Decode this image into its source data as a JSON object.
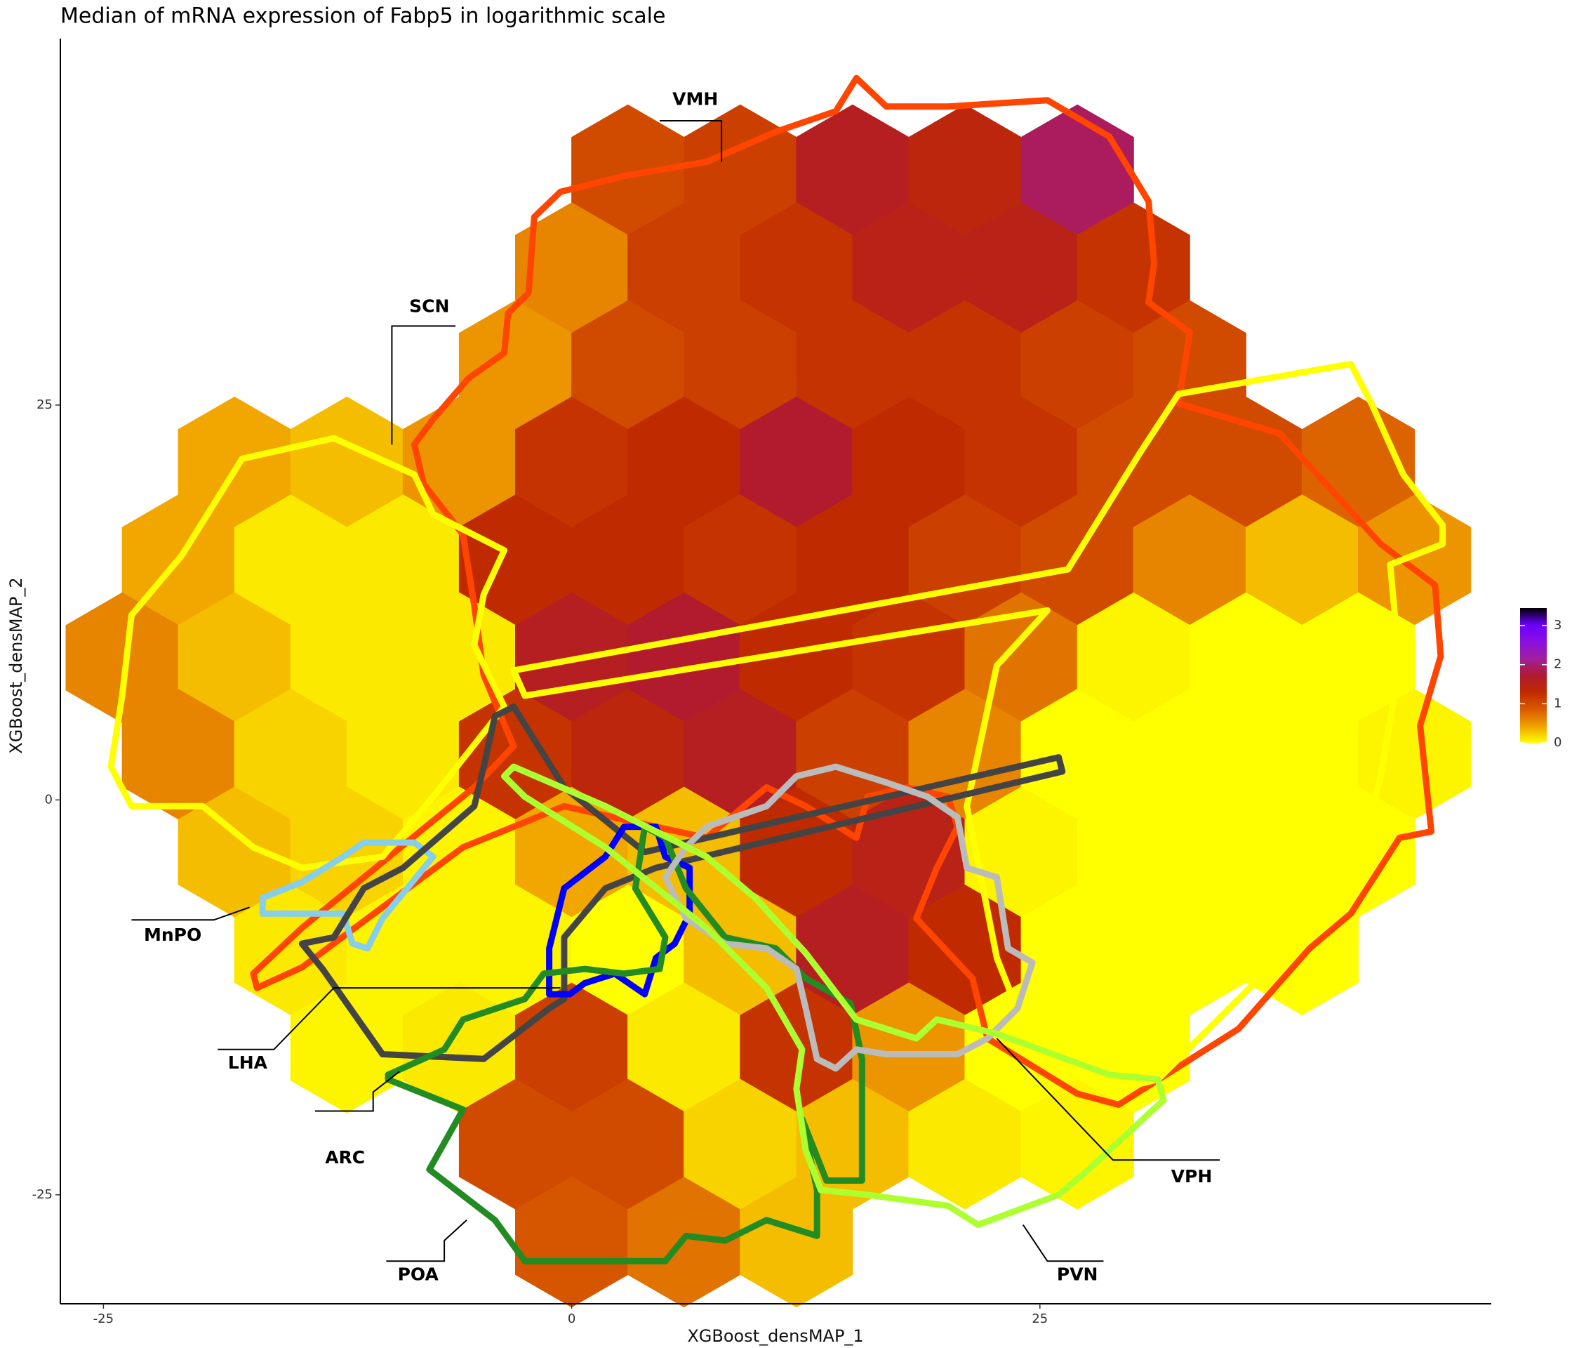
{
  "chart_data": {
    "type": "hexbin",
    "title": "Median of mRNA expression of Fabp5 in logarithmic scale",
    "x_label": "XGBoost_densMAP_1",
    "y_label": "XGBoost_densMAP_2",
    "xlim": [
      -27.3,
      49.1
    ],
    "ylim": [
      -31.9,
      48.2
    ],
    "xticks": [
      -25,
      0,
      25
    ],
    "yticks": [
      -25,
      0,
      25
    ],
    "grid": false,
    "hexbin": {
      "x": [
        3,
        9,
        15,
        21,
        27,
        0,
        6,
        12,
        18,
        24,
        30,
        -3,
        3,
        9,
        15,
        21,
        27,
        33,
        -18,
        -12,
        -6,
        0,
        6,
        12,
        18,
        24,
        30,
        36,
        42,
        -21,
        -15,
        -9,
        -3,
        3,
        9,
        15,
        21,
        27,
        33,
        39,
        45,
        -24,
        -18,
        -12,
        -6,
        0,
        6,
        12,
        18,
        24,
        30,
        36,
        42,
        -21,
        -15,
        -9,
        -3,
        3,
        9,
        15,
        21,
        27,
        33,
        39,
        45,
        -18,
        -12,
        -6,
        0,
        6,
        12,
        18,
        24,
        30,
        36,
        42,
        -15,
        -9,
        -3,
        3,
        9,
        15,
        21,
        27,
        33,
        39,
        -12,
        -6,
        0,
        6,
        12,
        18,
        24,
        30,
        -3,
        3,
        9,
        15,
        21,
        27,
        0,
        6,
        12
      ],
      "y": [
        39.9,
        39.9,
        39.9,
        39.9,
        39.9,
        33.7,
        33.7,
        33.7,
        33.7,
        33.7,
        33.7,
        27.5,
        27.5,
        27.5,
        27.5,
        27.5,
        27.5,
        27.5,
        21.4,
        21.4,
        21.4,
        21.4,
        21.4,
        21.4,
        21.4,
        21.4,
        21.4,
        21.4,
        21.4,
        15.2,
        15.2,
        15.2,
        15.2,
        15.2,
        15.2,
        15.2,
        15.2,
        15.2,
        15.2,
        15.2,
        15.2,
        9,
        9,
        9,
        9,
        9,
        9,
        9,
        9,
        9,
        9,
        9,
        9,
        2.9,
        2.9,
        2.9,
        2.9,
        2.9,
        2.9,
        2.9,
        2.9,
        2.9,
        2.9,
        2.9,
        2.9,
        -3.3,
        -3.3,
        -3.3,
        -3.3,
        -3.3,
        -3.3,
        -3.3,
        -3.3,
        -3.3,
        -3.3,
        -3.3,
        -9.5,
        -9.5,
        -9.5,
        -9.5,
        -9.5,
        -9.5,
        -9.5,
        -9.5,
        -9.5,
        -9.5,
        -15.7,
        -15.7,
        -15.7,
        -15.7,
        -15.7,
        -15.7,
        -15.7,
        -15.7,
        -21.8,
        -21.8,
        -21.8,
        -21.8,
        -21.8,
        -21.8,
        -28,
        -28,
        -28
      ],
      "values": [
        1.0,
        1.1,
        1.6,
        1.4,
        1.9,
        0.6,
        1.1,
        1.2,
        1.5,
        1.5,
        1.2,
        0.5,
        1.0,
        1.1,
        1.2,
        1.2,
        1.1,
        1.0,
        0.4,
        0.3,
        0.5,
        1.2,
        1.3,
        1.7,
        1.3,
        1.2,
        1.0,
        1.0,
        0.8,
        0.4,
        0.1,
        0.1,
        1.3,
        1.3,
        1.2,
        1.3,
        1.1,
        1.0,
        0.6,
        0.3,
        0.5,
        0.6,
        0.3,
        0.1,
        0.1,
        1.6,
        1.7,
        1.3,
        1.2,
        0.7,
        0.05,
        0,
        0,
        0.6,
        0.2,
        0.1,
        1.2,
        1.4,
        1.6,
        1.1,
        0.6,
        0,
        0,
        0,
        0.05,
        0.3,
        0.2,
        0.05,
        0.4,
        0.3,
        1.3,
        1.5,
        0.05,
        0,
        0,
        0,
        0.1,
        0.05,
        0.05,
        0,
        0.3,
        1.6,
        1.3,
        0,
        0,
        0,
        0.05,
        0.1,
        1.1,
        0.1,
        1.2,
        0.5,
        0,
        0,
        1.0,
        1.0,
        0.2,
        0.3,
        0.1,
        0.05,
        0.9,
        0.7,
        0.3
      ]
    },
    "colorbar": {
      "lim": [
        0,
        3.45
      ],
      "ticks": [
        0,
        1,
        2,
        3
      ],
      "colors": [
        "#ffff00",
        "#f0a000",
        "#d85a00",
        "#c02a00",
        "#b01a30",
        "#a020a0",
        "#8a10e0",
        "#6a00ff",
        "#000000"
      ]
    },
    "regions": [
      {
        "name": "VMH",
        "color": "#ff4500",
        "x": [
          -8.4,
          -7.4,
          -5.5,
          -3.6,
          -3.4,
          -2.3,
          -2.0,
          -0.6,
          2.8,
          7.2,
          10.9,
          14.1,
          15.2,
          16.8,
          20.1,
          25.4,
          28.7,
          30.8,
          31.1,
          30.8,
          33.0,
          32.4,
          37.8,
          43.2,
          46.1,
          46.4,
          45.3,
          45.9,
          44.2,
          41.6,
          39.4,
          35.6,
          29.2,
          27.0,
          22.2,
          21.4,
          18.4,
          19.5,
          20.6,
          20.1,
          17.9,
          15.8,
          15.2,
          12.5,
          10.4,
          7.2,
          4.5,
          -0.4,
          -5.8,
          -14.4,
          -16.8,
          -17.0,
          -14.4,
          -5.2,
          -3.1,
          -4.7,
          -5.2,
          -5.8,
          -7.9
        ],
        "y": [
          22.5,
          24.1,
          26.7,
          28.3,
          30.8,
          32.1,
          36.9,
          38.5,
          39.5,
          40.4,
          42.3,
          43.6,
          45.7,
          43.9,
          43.9,
          44.3,
          42.0,
          37.9,
          34.0,
          31.5,
          29.6,
          25.1,
          23.2,
          16.2,
          13.6,
          9.1,
          4.7,
          -2.0,
          -2.4,
          -7.2,
          -9.4,
          -14.5,
          -19.3,
          -18.6,
          -15.1,
          -11.3,
          -7.5,
          -4.3,
          -1.7,
          0.2,
          0.8,
          0.2,
          -2.4,
          -0.4,
          0.8,
          -2.4,
          -1.7,
          -0.4,
          -3.0,
          -10.6,
          -11.9,
          -11.0,
          -8.1,
          0.8,
          3.4,
          7.9,
          12.3,
          16.8,
          20.0
        ],
        "label_x": 6.6,
        "label_y": 44.3,
        "leader_x": [
          4.7,
          8.0,
          8.0
        ],
        "leader_y": [
          43.0,
          43.0,
          40.4
        ]
      },
      {
        "name": "SCN",
        "color": "#ffff00",
        "x": [
          -24.0,
          -23.5,
          -20.8,
          -17.6,
          -12.7,
          -8.4,
          -7.4,
          -3.6,
          -4.7,
          -5.2,
          -3.6,
          -7.4,
          -10.1,
          -14.4,
          -17.0,
          -19.7,
          -23.5,
          -24.6,
          null,
          -3.1,
          26.5,
          30.3,
          32.4,
          41.6,
          42.7,
          44.4,
          46.5,
          46.5,
          43.7,
          44.2,
          43.2,
          41.6,
          36.2,
          31.3,
          29.2,
          24.4,
          22.7,
          21.1,
          22.7,
          25.4,
          -2.5
        ],
        "y": [
          6.6,
          11.7,
          15.5,
          21.6,
          22.9,
          20.6,
          18.1,
          15.8,
          13.0,
          9.8,
          5.9,
          0.2,
          -3.6,
          -4.3,
          -3.0,
          -0.4,
          -0.4,
          2.1,
          null,
          8.2,
          14.6,
          21.9,
          25.7,
          27.6,
          25.1,
          20.6,
          17.4,
          16.2,
          14.9,
          8.5,
          1.5,
          -5.6,
          -11.9,
          -17.7,
          -18.3,
          -15.1,
          -10.0,
          -0.4,
          8.5,
          12.0,
          6.6
        ],
        "label_x": -7.6,
        "label_y": 31.2,
        "leader_x": [
          -6.2,
          -9.6,
          -9.6
        ],
        "leader_y": [
          30.0,
          30.0,
          22.5
        ]
      },
      {
        "name": "MnPO",
        "color": "#87ceeb",
        "x": [
          -16.5,
          -14.4,
          -12.2,
          -11.1,
          -8.4,
          -7.4,
          -10.1,
          -10.9,
          -11.7,
          -12.2,
          -16.5
        ],
        "y": [
          -6.2,
          -5.2,
          -3.6,
          -2.7,
          -2.7,
          -3.6,
          -7.5,
          -9.4,
          -9.1,
          -7.2,
          -7.2
        ],
        "label_x": -21.3,
        "label_y": -8.6,
        "leader_x": [
          -23.5,
          -19.1,
          -17.2
        ],
        "leader_y": [
          -7.6,
          -7.6,
          -6.8
        ]
      },
      {
        "name": "LHA",
        "color": "#444444",
        "x": [
          -3.6,
          -3.1,
          -0.4,
          3.9,
          26.0,
          26.2,
          4.5,
          1.8,
          -0.4,
          -0.4,
          -1.2,
          -4.7,
          -10.1,
          -13.3,
          -14.4,
          -12.7,
          -11.1,
          -9.0,
          -5.2,
          -4.7,
          -4.1
        ],
        "y": [
          5.6,
          5.9,
          0.8,
          -3.3,
          2.7,
          1.8,
          -4.3,
          -5.6,
          -8.7,
          -12.6,
          -13.2,
          -16.4,
          -16.1,
          -10.7,
          -9.1,
          -8.7,
          -5.6,
          -4.3,
          -0.4,
          2.1,
          5.3
        ],
        "label_x": -17.3,
        "label_y": -16.7,
        "leader_x": [
          -18.9,
          -15.9,
          -12.7,
          -0.6
        ],
        "leader_y": [
          -15.8,
          -15.8,
          -11.9,
          -11.9
        ]
      },
      {
        "name": "ARC",
        "color": "#0000ff",
        "x": [
          -1.2,
          -1.2,
          -0.4,
          1.8,
          2.8,
          4.5,
          5.0,
          6.3,
          6.3,
          5.5,
          4.5,
          3.9,
          2.3,
          0.7,
          -0.1
        ],
        "y": [
          -12.3,
          -9.4,
          -5.6,
          -3.6,
          -1.7,
          -1.7,
          -3.6,
          -4.3,
          -7.2,
          -9.1,
          -10.0,
          -12.3,
          -11.0,
          -11.6,
          -12.3
        ],
        "label_x": -12.1,
        "label_y": -22.7,
        "leader_x": [
          -13.7,
          -10.6,
          -10.6,
          -9.2
        ],
        "leader_y": [
          -19.7,
          -19.7,
          -18.5,
          -17.2
        ]
      },
      {
        "name": "POA",
        "color": "#228b22",
        "x": [
          -9.8,
          -6.8,
          -5.8,
          -2.5,
          -1.5,
          0.7,
          2.8,
          4.7,
          5.0,
          3.4,
          3.9,
          5.0,
          6.1,
          8.2,
          10.9,
          12.5,
          14.9,
          15.5,
          15.5,
          13.6,
          12.3,
          13.1,
          13.1,
          10.4,
          8.2,
          6.1,
          5.0,
          -2.5,
          -4.1,
          -7.6,
          -5.8,
          -9.8
        ],
        "y": [
          -17.4,
          -15.8,
          -13.9,
          -12.6,
          -11.0,
          -10.7,
          -11.0,
          -10.7,
          -8.7,
          -5.6,
          -1.7,
          -2.4,
          -5.6,
          -8.7,
          -9.4,
          -11.3,
          -12.9,
          -16.4,
          -24.1,
          -24.1,
          -20.2,
          -24.7,
          -27.6,
          -26.6,
          -27.9,
          -27.6,
          -29.2,
          -29.2,
          -26.6,
          -23.4,
          -19.6,
          -17.7
        ],
        "label_x": -8.2,
        "label_y": -30.1,
        "leader_x": [
          -9.9,
          -6.8,
          -6.8,
          -5.6
        ],
        "leader_y": [
          -29.2,
          -29.2,
          -27.9,
          -26.6
        ]
      },
      {
        "name": "VPH",
        "color": "#bbbbbb",
        "x": [
          7.2,
          10.4,
          12.0,
          14.1,
          16.8,
          19.0,
          20.6,
          21.1,
          22.7,
          23.3,
          24.6,
          23.8,
          22.2,
          20.6,
          16.8,
          15.2,
          14.1,
          13.1,
          12.5,
          12.0,
          10.4,
          8.2,
          6.1,
          5.0,
          6.1
        ],
        "y": [
          -1.7,
          -0.4,
          1.5,
          2.1,
          1.1,
          0.2,
          -1.1,
          -4.3,
          -4.9,
          -9.4,
          -10.3,
          -13.2,
          -15.1,
          -16.1,
          -16.1,
          -15.8,
          -17.0,
          -16.4,
          -13.2,
          -10.7,
          -9.4,
          -9.1,
          -7.5,
          -4.9,
          -3.0
        ],
        "label_x": 33.1,
        "label_y": -23.9,
        "leader_x": [
          34.6,
          28.9,
          22.7
        ],
        "leader_y": [
          -22.8,
          -22.8,
          -15.1
        ]
      },
      {
        "name": "PVN",
        "color": "#adff2f",
        "x": [
          -3.6,
          -3.1,
          1.8,
          7.2,
          9.8,
          12.5,
          15.2,
          18.4,
          19.5,
          22.7,
          28.7,
          31.3,
          31.6,
          27.6,
          26.0,
          21.7,
          20.1,
          15.8,
          13.3,
          12.5,
          12.0,
          12.3,
          10.4,
          7.2,
          1.8,
          -2.5
        ],
        "y": [
          1.5,
          2.1,
          -0.4,
          -3.6,
          -6.2,
          -9.7,
          -13.9,
          -15.1,
          -13.9,
          -14.8,
          -17.4,
          -17.7,
          -19.0,
          -23.4,
          -25.0,
          -26.9,
          -25.7,
          -25.0,
          -24.7,
          -22.2,
          -18.3,
          -15.8,
          -11.9,
          -8.1,
          -3.0,
          0.2
        ],
        "label_x": 27.0,
        "label_y": -30.1,
        "leader_x": [
          28.4,
          25.4,
          24.1
        ],
        "leader_y": [
          -29.2,
          -29.2,
          -26.9
        ]
      }
    ]
  }
}
